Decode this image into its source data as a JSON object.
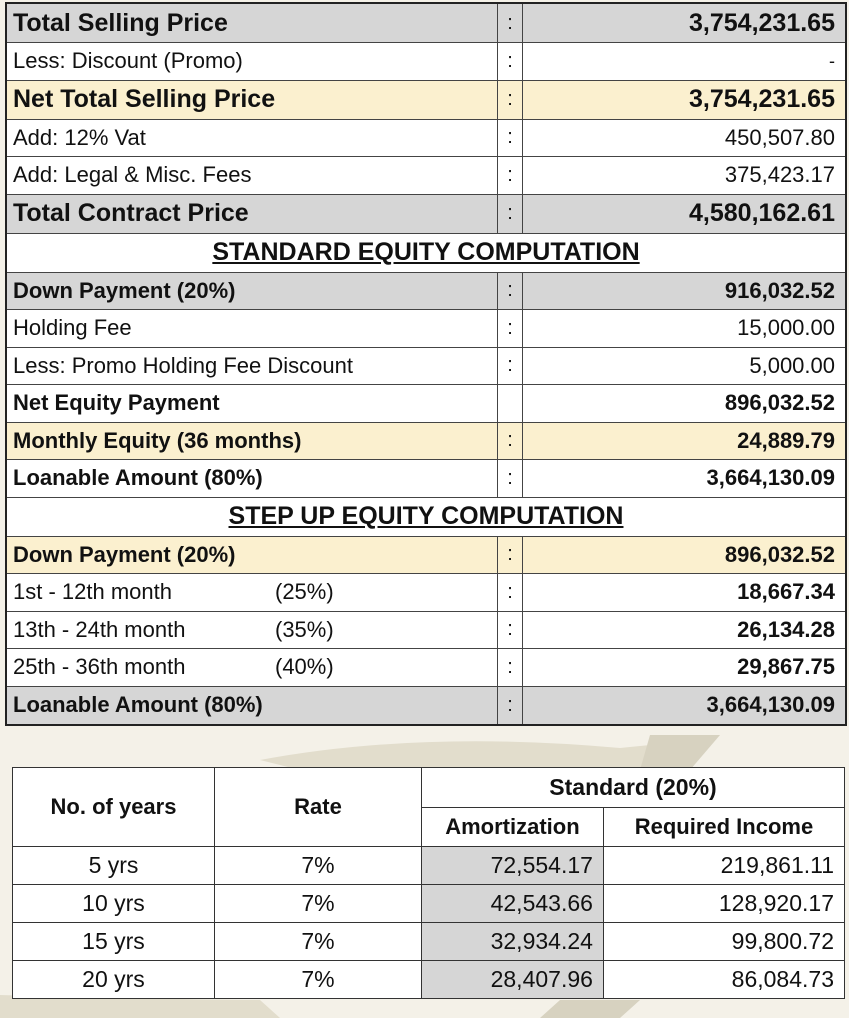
{
  "pricing": [
    {
      "label": "Total Selling Price",
      "sep": ":",
      "value": "3,754,231.65"
    },
    {
      "label": "Less: Discount (Promo)",
      "sep": ":",
      "value": "-"
    },
    {
      "label": "Net Total Selling Price",
      "sep": ":",
      "value": "3,754,231.65"
    },
    {
      "label": "Add: 12% Vat",
      "sep": ":",
      "value": "450,507.80"
    },
    {
      "label": "Add: Legal & Misc. Fees",
      "sep": ":",
      "value": "375,423.17"
    },
    {
      "label": "Total Contract Price",
      "sep": ":",
      "value": "4,580,162.61"
    }
  ],
  "standard": {
    "heading": "STANDARD EQUITY COMPUTATION",
    "rows": [
      {
        "label": "Down Payment (20%)",
        "sep": ":",
        "value": "916,032.52"
      },
      {
        "label": "Holding Fee",
        "sep": ":",
        "value": "15,000.00"
      },
      {
        "label": "Less: Promo Holding Fee Discount",
        "sep": ":",
        "value": "5,000.00"
      },
      {
        "label": "Net Equity Payment",
        "sep": "",
        "value": "896,032.52"
      },
      {
        "label": "Monthly Equity (36 months)",
        "sep": ":",
        "value": "24,889.79"
      },
      {
        "label": "Loanable Amount (80%)",
        "sep": ":",
        "value": "3,664,130.09"
      }
    ]
  },
  "stepup": {
    "heading": "STEP UP EQUITY COMPUTATION",
    "down_payment": {
      "label": "Down Payment (20%)",
      "sep": ":",
      "value": "896,032.52"
    },
    "periods": [
      {
        "period": "1st - 12th month",
        "pct": "(25%)",
        "sep": ":",
        "value": "18,667.34"
      },
      {
        "period": "13th - 24th month",
        "pct": "(35%)",
        "sep": ":",
        "value": "26,134.28"
      },
      {
        "period": "25th - 36th month",
        "pct": "(40%)",
        "sep": ":",
        "value": "29,867.75"
      }
    ],
    "loanable": {
      "label": "Loanable Amount (80%)",
      "sep": ":",
      "value": "3,664,130.09"
    }
  },
  "amortization": {
    "col_years": "No. of years",
    "col_rate": "Rate",
    "group": "Standard (20%)",
    "col_amort": "Amortization",
    "col_income": "Required Income",
    "rows": [
      {
        "years": "5 yrs",
        "rate": "7%",
        "amort": "72,554.17",
        "income": "219,861.11"
      },
      {
        "years": "10 yrs",
        "rate": "7%",
        "amort": "42,543.66",
        "income": "128,920.17"
      },
      {
        "years": "15 yrs",
        "rate": "7%",
        "amort": "32,934.24",
        "income": "99,800.72"
      },
      {
        "years": "20 yrs",
        "rate": "7%",
        "amort": "28,407.96",
        "income": "86,084.73"
      }
    ]
  }
}
